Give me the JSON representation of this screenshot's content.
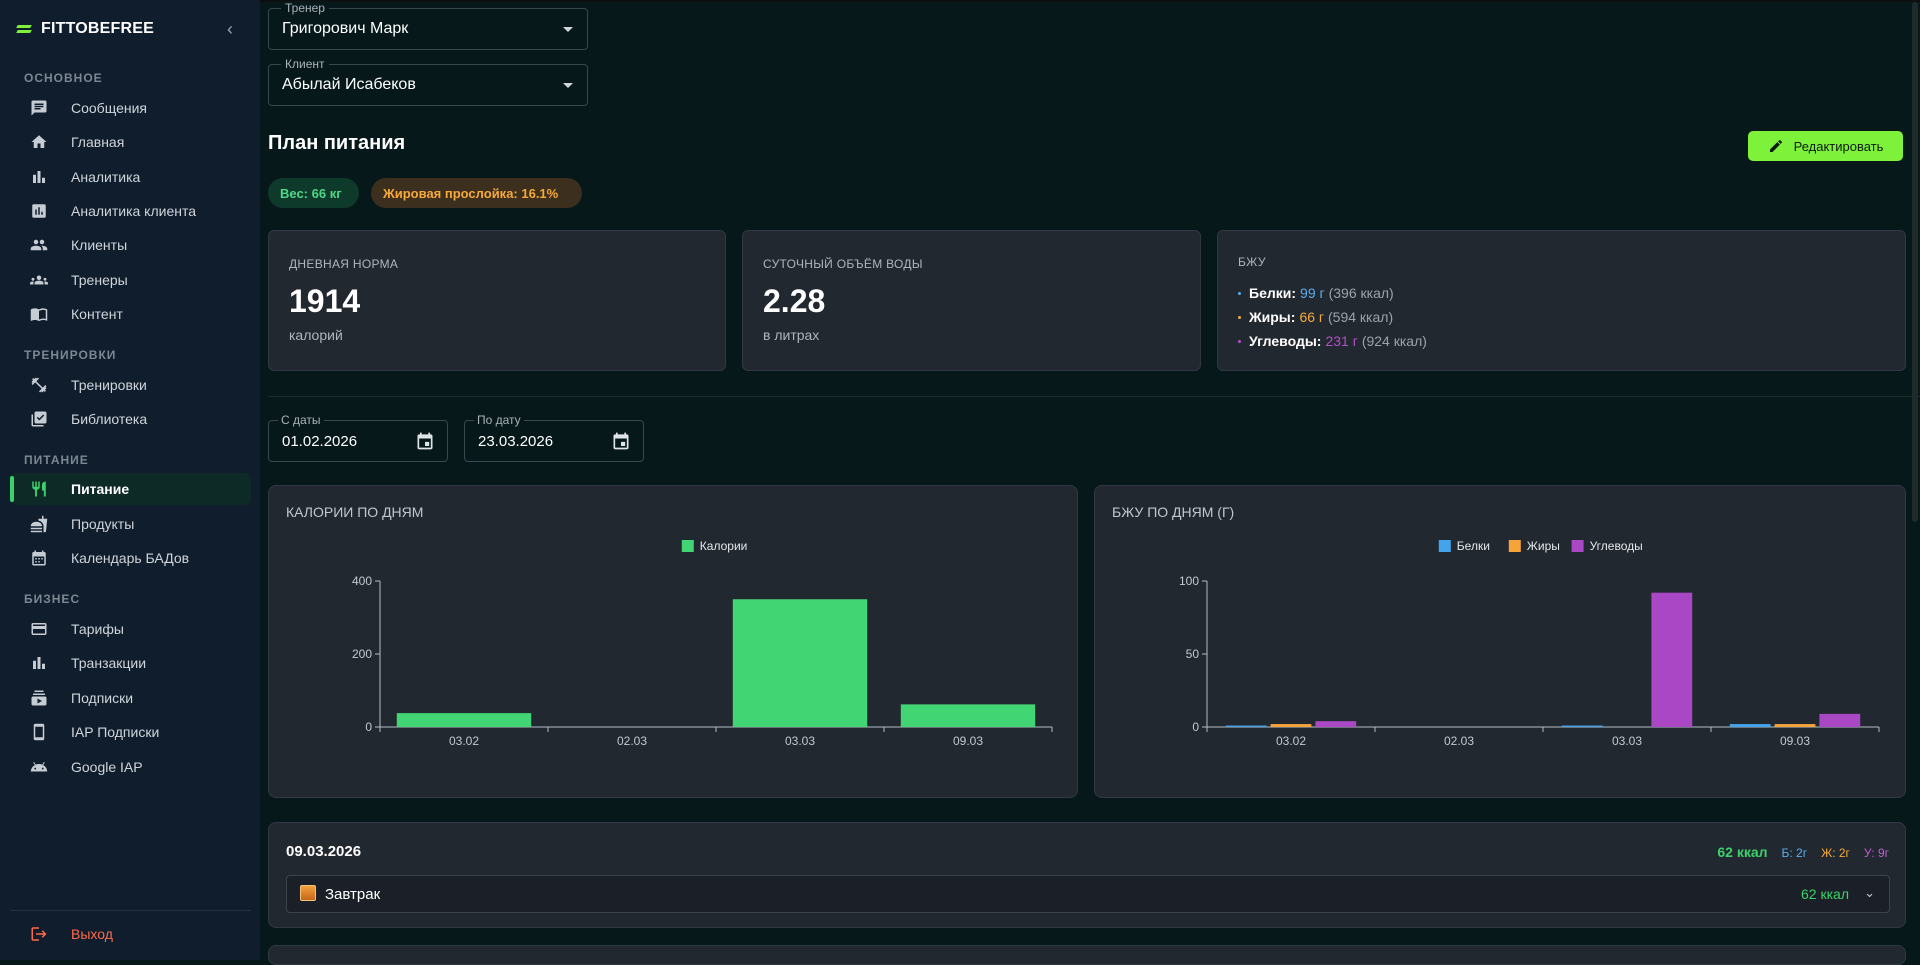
{
  "app": {
    "name": "FITTOBEFREE"
  },
  "sidebar": {
    "sections": [
      "ОСНОВНОЕ",
      "ТРЕНИРОВКИ",
      "ПИТАНИЕ",
      "БИЗНЕС"
    ],
    "items": [
      {
        "label": "Сообщения",
        "icon": "chat-icon"
      },
      {
        "label": "Главная",
        "icon": "home-icon"
      },
      {
        "label": "Аналитика",
        "icon": "bar-chart-icon"
      },
      {
        "label": "Аналитика клиента",
        "icon": "client-analytics-icon"
      },
      {
        "label": "Клиенты",
        "icon": "people-icon"
      },
      {
        "label": "Тренеры",
        "icon": "group-icon"
      },
      {
        "label": "Контент",
        "icon": "book-icon"
      },
      {
        "label": "Тренировки",
        "icon": "dumbbell-icon"
      },
      {
        "label": "Библиотека",
        "icon": "library-check-icon"
      },
      {
        "label": "Питание",
        "icon": "restaurant-icon",
        "active": true
      },
      {
        "label": "Продукты",
        "icon": "food-icon"
      },
      {
        "label": "Календарь БАДов",
        "icon": "calendar-icon"
      },
      {
        "label": "Тарифы",
        "icon": "credit-card-icon"
      },
      {
        "label": "Транзакции",
        "icon": "bar-chart-icon"
      },
      {
        "label": "Подписки",
        "icon": "subscriptions-icon"
      },
      {
        "label": "IAP Подписки",
        "icon": "phone-icon"
      },
      {
        "label": "Google IAP",
        "icon": "android-icon"
      }
    ],
    "logout": "Выход"
  },
  "filters": {
    "trainer": {
      "label": "Тренер",
      "value": "Григорович Марк"
    },
    "client": {
      "label": "Клиент",
      "value": "Абылай Исабеков"
    }
  },
  "plan": {
    "title": "План питания",
    "edit_label": "Редактировать",
    "badges": {
      "weight": "Вес: 66 кг",
      "fat": "Жировая прослойка: 16.1%"
    },
    "daily": {
      "caption": "ДНЕВНАЯ НОРМА",
      "value": "1914",
      "unit": "калорий"
    },
    "water": {
      "caption": "СУТОЧНЫЙ ОБЪЁМ ВОДЫ",
      "value": "2.28",
      "unit": "в литрах"
    },
    "bju": {
      "caption": "БЖУ",
      "protein": {
        "label": "Белки:",
        "grams": "99 г",
        "kcal": "(396 ккал)",
        "color": "#5aaef0"
      },
      "fat": {
        "label": "Жиры:",
        "grams": "66 г",
        "kcal": "(594 ккал)",
        "color": "#f6a93a"
      },
      "carbs": {
        "label": "Углеводы:",
        "grams": "231 г",
        "kcal": "(924 ккал)",
        "color": "#b34fc7"
      }
    }
  },
  "dates": {
    "from": {
      "label": "С даты",
      "value": "01.02.2026"
    },
    "to": {
      "label": "По дату",
      "value": "23.03.2026"
    }
  },
  "chart_data": [
    {
      "type": "bar",
      "title": "КАЛОРИИ ПО ДНЯМ",
      "categories": [
        "03.02",
        "02.03",
        "03.03",
        "09.03"
      ],
      "series": [
        {
          "name": "Калории",
          "values": [
            38,
            0,
            350,
            62
          ],
          "color": "#41d673"
        }
      ],
      "ylim": [
        0,
        400
      ],
      "yticks": [
        0,
        200,
        400
      ],
      "legend": "top-center",
      "grid": false
    },
    {
      "type": "bar",
      "title": "БЖУ ПО ДНЯМ (Г)",
      "categories": [
        "03.02",
        "02.03",
        "03.03",
        "09.03"
      ],
      "series": [
        {
          "name": "Белки",
          "values": [
            1,
            0,
            1,
            2
          ],
          "color": "#45a3eb"
        },
        {
          "name": "Жиры",
          "values": [
            2,
            0,
            0,
            2
          ],
          "color": "#f6a33a"
        },
        {
          "name": "Углеводы",
          "values": [
            4,
            0,
            92,
            9
          ],
          "color": "#a947c4"
        }
      ],
      "ylim": [
        0,
        100
      ],
      "yticks": [
        0,
        50,
        100
      ],
      "legend": "top-center",
      "grid": false
    }
  ],
  "days": [
    {
      "date": "09.03.2026",
      "kcal": "62 ккал",
      "protein": "Б: 2г",
      "fat": "Ж: 2г",
      "carbs": "У: 9г",
      "meals": [
        {
          "name": "Завтрак",
          "kcal": "62 ккал"
        }
      ]
    }
  ]
}
